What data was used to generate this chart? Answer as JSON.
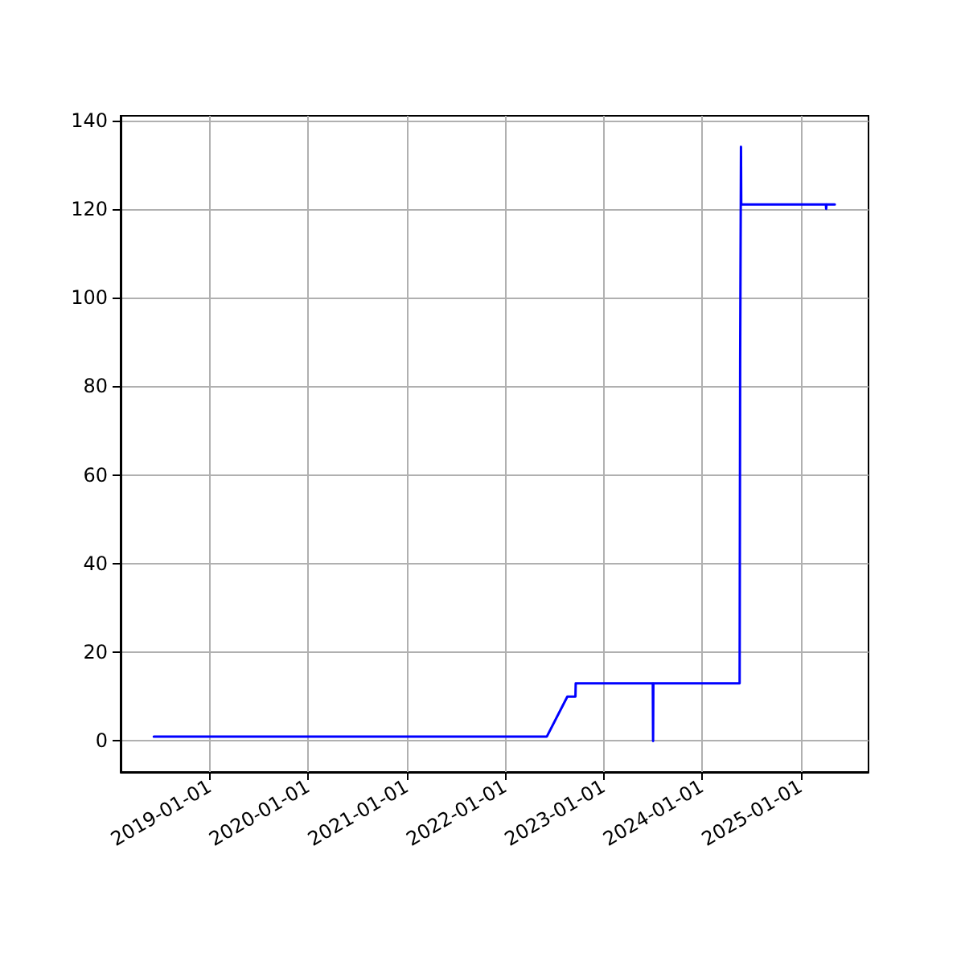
{
  "chart_data": {
    "type": "line",
    "x": [
      "2018-06-08",
      "2022-06-05",
      "2022-08-20",
      "2022-09-19",
      "2022-09-20",
      "2023-07-03",
      "2023-07-04",
      "2023-07-05",
      "2024-05-20",
      "2024-05-22",
      "2024-05-25",
      "2024-05-26",
      "2025-04-05",
      "2025-04-06",
      "2025-04-07",
      "2025-05-08"
    ],
    "series": [
      {
        "color": "#0000ff",
        "values": [
          1,
          1,
          10,
          10,
          13,
          13,
          0,
          13,
          13,
          86,
          134,
          121,
          121,
          120,
          121,
          121
        ]
      }
    ],
    "xlim": [
      "2018-02-05",
      "2025-09-10"
    ],
    "xticks": [
      "2019-01-01",
      "2020-01-01",
      "2021-01-01",
      "2022-01-01",
      "2023-01-01",
      "2024-01-01",
      "2025-01-01"
    ],
    "ylim": [
      -7,
      141
    ],
    "yticks": [
      0,
      20,
      40,
      60,
      80,
      100,
      120,
      140
    ],
    "grid": true
  }
}
